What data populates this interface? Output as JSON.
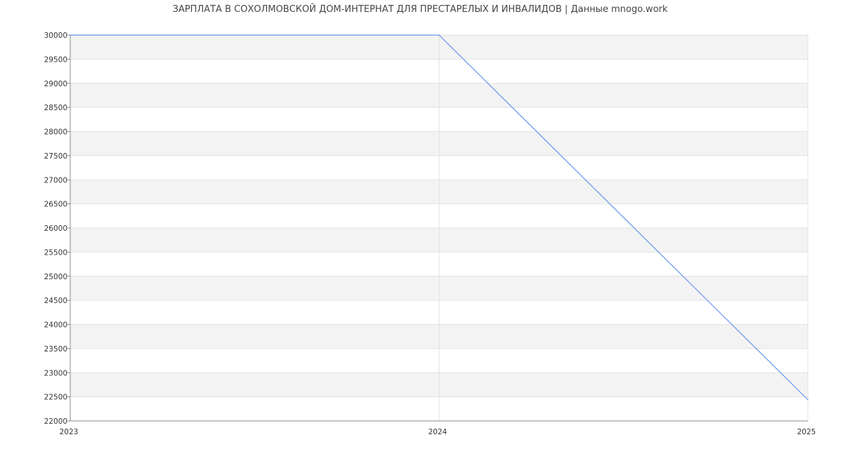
{
  "chart_data": {
    "type": "line",
    "title": "ЗАРПЛАТА В СОХОЛМОВСКОЙ ДОМ-ИНТЕРНАТ ДЛЯ ПРЕСТАРЕЛЫХ И ИНВАЛИДОВ | Данные mnogo.work",
    "xlabel": "",
    "ylabel": "",
    "x": [
      "2023",
      "2024",
      "2025"
    ],
    "values": [
      30000,
      30000,
      22440
    ],
    "xlim": [
      2023,
      2025
    ],
    "ylim": [
      22000,
      30000
    ],
    "y_ticks": [
      22000,
      22500,
      23000,
      23500,
      24000,
      24500,
      25000,
      25500,
      26000,
      26500,
      27000,
      27500,
      28000,
      28500,
      29000,
      29500,
      30000
    ],
    "x_ticks": [
      "2023",
      "2024",
      "2025"
    ],
    "grid": true,
    "line_color": "#6495ed",
    "band_color": "#f3f3f3"
  }
}
